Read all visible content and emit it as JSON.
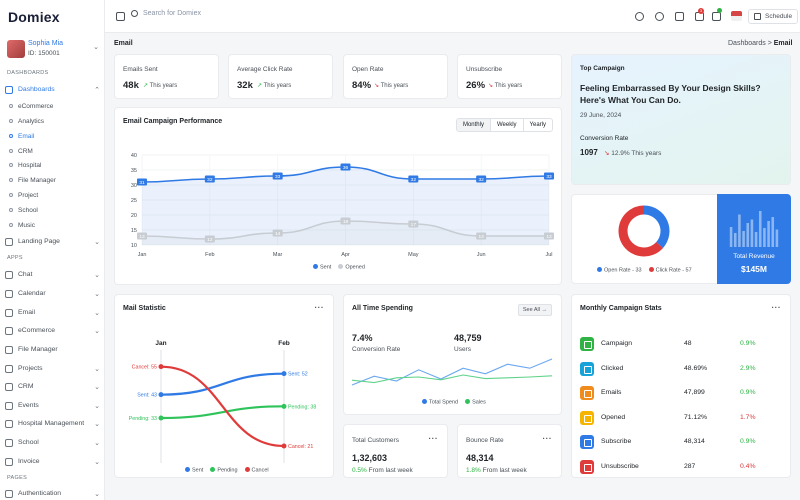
{
  "brand": {
    "logo": "Domiex"
  },
  "user": {
    "name": "Sophia Mia",
    "id": "ID: 150001"
  },
  "sidebar": {
    "sec_dashboards": "DASHBOARDS",
    "dashboards": "Dashboards",
    "dash_items": [
      "eCommerce",
      "Analytics",
      "Email",
      "CRM",
      "Hospital",
      "File Manager",
      "Project",
      "School",
      "Music"
    ],
    "landing": "Landing Page",
    "sec_apps": "APPS",
    "apps": [
      "Chat",
      "Calendar",
      "Email",
      "eCommerce",
      "File Manager",
      "Projects",
      "CRM",
      "Events",
      "Hospital Management",
      "School",
      "Invoice"
    ],
    "sec_pages": "PAGES",
    "auth": "Authentication"
  },
  "topbar": {
    "search_placeholder": "Search for Domiex",
    "notif_count": "3",
    "schedule": "Schedule"
  },
  "page": {
    "title": "Email",
    "crumb_parent": "Dashboards",
    "crumb_sep": ">",
    "crumb_current": "Email"
  },
  "kpis": [
    {
      "label": "Emails Sent",
      "value": "48k",
      "trend": "This years",
      "dir": "up"
    },
    {
      "label": "Average Click Rate",
      "value": "32k",
      "trend": "This years",
      "dir": "up"
    },
    {
      "label": "Open Rate",
      "value": "84%",
      "trend": "This years",
      "dir": "down"
    },
    {
      "label": "Unsubscribe",
      "value": "26%",
      "trend": "This years",
      "dir": "down"
    }
  ],
  "performance": {
    "title": "Email Campaign Performance",
    "tabs": [
      "Monthly",
      "Weekly",
      "Yearly"
    ],
    "legend": [
      "Sent",
      "Opened"
    ]
  },
  "top_campaign": {
    "tag": "Top Campaign",
    "headline": "Feeling Embarrassed By Your Design Skills? Here's What You Can Do.",
    "date": "29 June, 2024",
    "cr_label": "Conversion Rate",
    "cr_value": "1097",
    "cr_trend": "12.9% This years"
  },
  "donut_card": {
    "legend": [
      "Open Rate - 33",
      "Click Rate - 57"
    ],
    "revenue_label": "Total Revenue",
    "revenue_value": "$145M"
  },
  "mail_stat": {
    "title": "Mail Statistic",
    "jan": "Jan",
    "feb": "Feb",
    "labels_left": [
      "Cancel: 55",
      "Sent: 43",
      "Pending: 33"
    ],
    "labels_right": [
      "Sent: 52",
      "Pending: 38",
      "Cancel: 21"
    ],
    "legend": [
      "Sent",
      "Pending",
      "Cancel"
    ]
  },
  "spending": {
    "title": "All Time Spending",
    "see_all": "See All →",
    "v1": "7.4%",
    "l1": "Conversion Rate",
    "v2": "48,759",
    "l2": "Users",
    "legend": [
      "Total Spend",
      "Sales"
    ]
  },
  "customers": {
    "label": "Total Customers",
    "value": "1,32,603",
    "pct": "0.5%",
    "trend": "From last week"
  },
  "bounce": {
    "label": "Bounce Rate",
    "value": "48,314",
    "pct": "1.8%",
    "trend": "From last week"
  },
  "monthly": {
    "title": "Monthly Campaign Stats",
    "rows": [
      {
        "name": "Campaign",
        "value": "48",
        "pct": "0.9%",
        "dir": "up",
        "color": "#2fb344"
      },
      {
        "name": "Clicked",
        "value": "48.69%",
        "pct": "2.9%",
        "dir": "up",
        "color": "#17a2d8"
      },
      {
        "name": "Emails",
        "value": "47,899",
        "pct": "0.9%",
        "dir": "up",
        "color": "#f08c1e"
      },
      {
        "name": "Opened",
        "value": "71.12%",
        "pct": "1.7%",
        "dir": "down",
        "color": "#f5b400"
      },
      {
        "name": "Subscribe",
        "value": "48,314",
        "pct": "0.9%",
        "dir": "up",
        "color": "#2f7ae5"
      },
      {
        "name": "Unsubscribe",
        "value": "287",
        "pct": "0.4%",
        "dir": "down",
        "color": "#e03b3b"
      }
    ]
  },
  "colors": {
    "accent": "#2f7ae5",
    "up": "#2fb344",
    "down": "#d63939",
    "grey": "#c8cdd3",
    "green": "#2fc35b",
    "red": "#e03b3b"
  },
  "chart_data": [
    {
      "type": "area",
      "id": "performance",
      "categories": [
        "Jan",
        "Feb",
        "Mar",
        "Apr",
        "May",
        "Jun",
        "Jul"
      ],
      "series": [
        {
          "name": "Sent",
          "values": [
            31,
            32,
            33,
            36,
            32,
            32,
            33
          ]
        },
        {
          "name": "Opened",
          "values": [
            13,
            12,
            14,
            18,
            17,
            13,
            13
          ]
        }
      ],
      "ylim": [
        10,
        40
      ],
      "yticks": [
        10,
        15,
        20,
        25,
        30,
        35,
        40
      ],
      "grid": true,
      "legend": "bottom"
    },
    {
      "type": "pie",
      "id": "donut",
      "labels": [
        "Open Rate",
        "Click Rate"
      ],
      "values": [
        33,
        57
      ],
      "colors": [
        "#2f7ae5",
        "#e03b3b"
      ],
      "legend": "bottom"
    },
    {
      "type": "bar",
      "id": "revenue",
      "values": [
        40,
        28,
        65,
        32,
        48,
        55,
        30,
        72,
        38,
        52,
        60,
        35
      ],
      "ylim": [
        0,
        80
      ]
    },
    {
      "type": "line",
      "id": "mail_stat",
      "categories": [
        "Jan",
        "Feb"
      ],
      "series": [
        {
          "name": "Sent",
          "values": [
            43,
            52
          ]
        },
        {
          "name": "Pending",
          "values": [
            33,
            38
          ]
        },
        {
          "name": "Cancel",
          "values": [
            55,
            21
          ]
        }
      ],
      "ylim": [
        15,
        60
      ]
    },
    {
      "type": "line",
      "id": "spending",
      "series": [
        {
          "name": "Total Spend",
          "values": [
            20,
            42,
            30,
            58,
            35,
            62,
            48,
            72,
            62,
            85
          ]
        },
        {
          "name": "Sales",
          "values": [
            32,
            26,
            38,
            40,
            33,
            45,
            36,
            38,
            40,
            43
          ]
        }
      ],
      "ylim": [
        0,
        100
      ],
      "legend": "bottom"
    }
  ]
}
